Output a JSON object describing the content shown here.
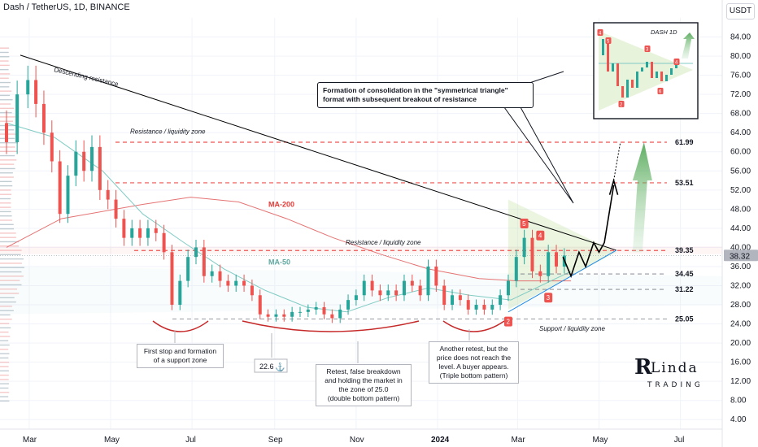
{
  "header": {
    "title": "Dash / TetherUS, 1D, BINANCE",
    "currency": "USDT"
  },
  "chart_data": {
    "type": "candlestick",
    "symbol": "Dash / TetherUS",
    "interval": "1D",
    "exchange": "BINANCE",
    "x_axis": {
      "labels": [
        "Mar",
        "May",
        "Jul",
        "Sep",
        "Nov",
        "2024",
        "Mar",
        "May",
        "Jul"
      ],
      "dates": [
        "2023-03-01",
        "2023-05-01",
        "2023-07-01",
        "2023-09-01",
        "2023-11-01",
        "2024-01-01",
        "2024-03-01",
        "2024-05-01",
        "2024-07-01"
      ],
      "range": [
        "2023-02-12",
        "2024-07-25"
      ]
    },
    "y_axis": {
      "scale": "linear",
      "position": "right",
      "ylim": [
        2.0,
        88.0
      ],
      "ticks": [
        4.0,
        8.0,
        12.0,
        16.0,
        20.0,
        24.0,
        28.0,
        32.0,
        36.0,
        40.0,
        44.0,
        48.0,
        52.0,
        56.0,
        60.0,
        64.0,
        68.0,
        72.0,
        76.0,
        80.0,
        84.0
      ],
      "tick_labels": [
        "4.00",
        "8.00",
        "12.00",
        "16.00",
        "20.00",
        "24.00",
        "28.00",
        "32.00",
        "36.00",
        "40.00",
        "44.00",
        "48.00",
        "52.00",
        "56.00",
        "60.00",
        "64.00",
        "68.00",
        "72.00",
        "76.00",
        "80.00",
        "84.00"
      ]
    },
    "last_price": {
      "value": 38.32,
      "label": "38.32",
      "color": "#131722"
    },
    "colors": {
      "up": "#26a69a",
      "down": "#ef5350",
      "ma200": "#e57373",
      "ma50": "#80cbc4",
      "level_line": "#ef5350",
      "resistance_line": "#000000",
      "grid": "#f0f3fa"
    },
    "candles": [
      {
        "date": "2023-02-12",
        "o": 66,
        "c": 62
      },
      {
        "date": "2023-02-20",
        "o": 62,
        "c": 72
      },
      {
        "date": "2023-02-28",
        "o": 72,
        "c": 75
      },
      {
        "date": "2023-03-06",
        "o": 75,
        "c": 70
      },
      {
        "date": "2023-03-12",
        "o": 70,
        "c": 64
      },
      {
        "date": "2023-03-18",
        "o": 64,
        "c": 58
      },
      {
        "date": "2023-03-24",
        "o": 58,
        "c": 47
      },
      {
        "date": "2023-03-30",
        "o": 47,
        "c": 55
      },
      {
        "date": "2023-04-05",
        "o": 55,
        "c": 60
      },
      {
        "date": "2023-04-11",
        "o": 60,
        "c": 56
      },
      {
        "date": "2023-04-17",
        "o": 56,
        "c": 61
      },
      {
        "date": "2023-04-23",
        "o": 61,
        "c": 52
      },
      {
        "date": "2023-04-29",
        "o": 52,
        "c": 50
      },
      {
        "date": "2023-05-05",
        "o": 50,
        "c": 46
      },
      {
        "date": "2023-05-11",
        "o": 46,
        "c": 42
      },
      {
        "date": "2023-05-17",
        "o": 42,
        "c": 44
      },
      {
        "date": "2023-05-23",
        "o": 44,
        "c": 42
      },
      {
        "date": "2023-05-29",
        "o": 42,
        "c": 44
      },
      {
        "date": "2023-06-04",
        "o": 44,
        "c": 43
      },
      {
        "date": "2023-06-10",
        "o": 43,
        "c": 39
      },
      {
        "date": "2023-06-16",
        "o": 39,
        "c": 28
      },
      {
        "date": "2023-06-22",
        "o": 28,
        "c": 33
      },
      {
        "date": "2023-06-28",
        "o": 33,
        "c": 38
      },
      {
        "date": "2023-07-04",
        "o": 38,
        "c": 40
      },
      {
        "date": "2023-07-10",
        "o": 40,
        "c": 34
      },
      {
        "date": "2023-07-16",
        "o": 34,
        "c": 35
      },
      {
        "date": "2023-07-22",
        "o": 35,
        "c": 33
      },
      {
        "date": "2023-07-28",
        "o": 33,
        "c": 32
      },
      {
        "date": "2023-08-03",
        "o": 32,
        "c": 33
      },
      {
        "date": "2023-08-09",
        "o": 33,
        "c": 32
      },
      {
        "date": "2023-08-15",
        "o": 32,
        "c": 30
      },
      {
        "date": "2023-08-21",
        "o": 30,
        "c": 26
      },
      {
        "date": "2023-08-27",
        "o": 26,
        "c": 25.5
      },
      {
        "date": "2023-09-02",
        "o": 25.5,
        "c": 26
      },
      {
        "date": "2023-09-08",
        "o": 26,
        "c": 25.5
      },
      {
        "date": "2023-09-14",
        "o": 25.5,
        "c": 26.5
      },
      {
        "date": "2023-09-20",
        "o": 26.5,
        "c": 26.5
      },
      {
        "date": "2023-09-26",
        "o": 26.5,
        "c": 27
      },
      {
        "date": "2023-10-02",
        "o": 27,
        "c": 27.5
      },
      {
        "date": "2023-10-08",
        "o": 27.5,
        "c": 26
      },
      {
        "date": "2023-10-14",
        "o": 26,
        "c": 25.2
      },
      {
        "date": "2023-10-20",
        "o": 25.2,
        "c": 27
      },
      {
        "date": "2023-10-26",
        "o": 27,
        "c": 29
      },
      {
        "date": "2023-11-01",
        "o": 29,
        "c": 30
      },
      {
        "date": "2023-11-07",
        "o": 30,
        "c": 33
      },
      {
        "date": "2023-11-13",
        "o": 33,
        "c": 31
      },
      {
        "date": "2023-11-19",
        "o": 31,
        "c": 30
      },
      {
        "date": "2023-11-25",
        "o": 30,
        "c": 31
      },
      {
        "date": "2023-12-01",
        "o": 31,
        "c": 30
      },
      {
        "date": "2023-12-07",
        "o": 30,
        "c": 33
      },
      {
        "date": "2023-12-13",
        "o": 33,
        "c": 32
      },
      {
        "date": "2023-12-19",
        "o": 32,
        "c": 30
      },
      {
        "date": "2023-12-25",
        "o": 30,
        "c": 36
      },
      {
        "date": "2023-12-31",
        "o": 36,
        "c": 32
      },
      {
        "date": "2024-01-06",
        "o": 32,
        "c": 28
      },
      {
        "date": "2024-01-12",
        "o": 28,
        "c": 30
      },
      {
        "date": "2024-01-18",
        "o": 30,
        "c": 29
      },
      {
        "date": "2024-01-24",
        "o": 29,
        "c": 27
      },
      {
        "date": "2024-01-30",
        "o": 27,
        "c": 28
      },
      {
        "date": "2024-02-05",
        "o": 28,
        "c": 27
      },
      {
        "date": "2024-02-11",
        "o": 27,
        "c": 28
      },
      {
        "date": "2024-02-17",
        "o": 28,
        "c": 30
      },
      {
        "date": "2024-02-23",
        "o": 30,
        "c": 33
      },
      {
        "date": "2024-02-29",
        "o": 33,
        "c": 38
      },
      {
        "date": "2024-03-06",
        "o": 38,
        "c": 42
      },
      {
        "date": "2024-03-12",
        "o": 42,
        "c": 35
      },
      {
        "date": "2024-03-18",
        "o": 35,
        "c": 34
      },
      {
        "date": "2024-03-24",
        "o": 34,
        "c": 39
      },
      {
        "date": "2024-03-30",
        "o": 39,
        "c": 36
      },
      {
        "date": "2024-04-05",
        "o": 36,
        "c": 38.3
      }
    ],
    "moving_averages": [
      {
        "name": "MA-200",
        "values": [
          {
            "date": "2023-02-12",
            "v": 40
          },
          {
            "date": "2023-03-25",
            "v": 46
          },
          {
            "date": "2023-05-25",
            "v": 49
          },
          {
            "date": "2023-06-30",
            "v": 50.5
          },
          {
            "date": "2023-08-05",
            "v": 49.5
          },
          {
            "date": "2023-09-10",
            "v": 46
          },
          {
            "date": "2023-10-15",
            "v": 42
          },
          {
            "date": "2023-11-20",
            "v": 38.5
          },
          {
            "date": "2023-12-25",
            "v": 35.5
          },
          {
            "date": "2024-02-01",
            "v": 33.5
          },
          {
            "date": "2024-03-01",
            "v": 33
          },
          {
            "date": "2024-04-10",
            "v": 33
          }
        ]
      },
      {
        "name": "MA-50",
        "values": [
          {
            "date": "2023-02-12",
            "v": 66
          },
          {
            "date": "2023-03-20",
            "v": 63
          },
          {
            "date": "2023-04-25",
            "v": 56
          },
          {
            "date": "2023-05-25",
            "v": 47
          },
          {
            "date": "2023-06-25",
            "v": 41
          },
          {
            "date": "2023-07-25",
            "v": 35.5
          },
          {
            "date": "2023-08-25",
            "v": 31
          },
          {
            "date": "2023-09-25",
            "v": 27.5
          },
          {
            "date": "2023-10-25",
            "v": 26.5
          },
          {
            "date": "2023-11-25",
            "v": 29.5
          },
          {
            "date": "2023-12-25",
            "v": 31.5
          },
          {
            "date": "2024-01-25",
            "v": 30
          },
          {
            "date": "2024-02-25",
            "v": 29
          },
          {
            "date": "2024-04-10",
            "v": 35
          }
        ]
      }
    ],
    "levels": [
      {
        "value": 61.99,
        "label": "61.99"
      },
      {
        "value": 53.51,
        "label": "53.51"
      },
      {
        "value": 39.35,
        "label": "39.35"
      },
      {
        "value": 34.45,
        "label": "34.45"
      },
      {
        "value": 31.22,
        "label": "31.22"
      },
      {
        "value": 25.05,
        "label": "25.05"
      }
    ],
    "annotations": {
      "descending_resistance": "Descending resistance",
      "resistance_top": "Resistance / liquidity zone",
      "resistance_mid": "Resistance / liquidity zone",
      "support": "Support / liquidity zone",
      "ma200_label": "MA-200",
      "ma50_label": "MA-50",
      "low_price": "22.6",
      "marker_labels": [
        "5",
        "4",
        "3",
        "2"
      ]
    },
    "inset": {
      "title": "DASH 1D",
      "marker_labels": [
        "4",
        "5",
        "2",
        "3",
        "6",
        "4"
      ]
    }
  },
  "callouts": {
    "first_stop": "First stop and formation\nof a support zone",
    "retest": "Retest, false breakdown\nand holding the market in\nthe zone of 25.0\n(double bottom pattern)",
    "another_retest": "Another retest, but the\nprice does not reach the\nlevel. A buyer appears.\n(Triple bottom pattern)",
    "consolidation": "Formation of consolidation in the \"symmetrical triangle\" format with subsequent breakout of resistance"
  },
  "brand": {
    "logo_text": "Linda Trading"
  }
}
